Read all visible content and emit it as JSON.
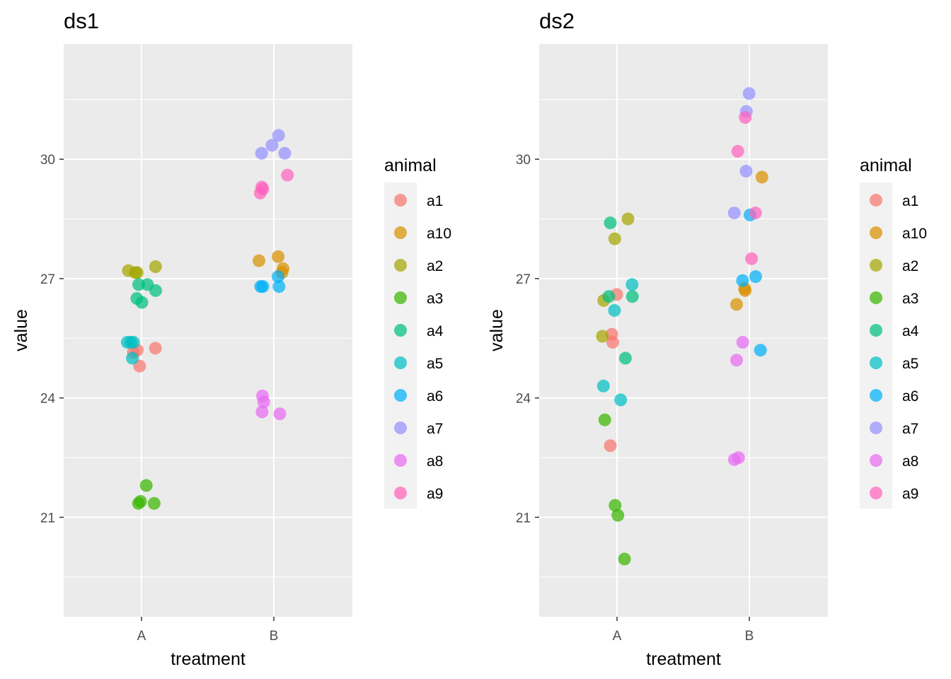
{
  "chart_data": [
    {
      "type": "scatter",
      "title": "ds1",
      "xlabel": "treatment",
      "ylabel": "value",
      "categories": [
        "A",
        "B"
      ],
      "y_ticks": [
        21,
        24,
        27,
        30
      ],
      "ylim": [
        18.5,
        32.9
      ],
      "grid": true,
      "legend": {
        "title": "animal",
        "position": "right"
      },
      "series": [
        {
          "name": "a1",
          "color": "#F8766D",
          "points": [
            [
              "A",
              24.8
            ],
            [
              "A",
              25.15
            ],
            [
              "A",
              25.2
            ],
            [
              "A",
              25.25
            ]
          ]
        },
        {
          "name": "a10",
          "color": "#D89000",
          "points": [
            [
              "B",
              27.55
            ],
            [
              "B",
              27.45
            ],
            [
              "B",
              27.25
            ],
            [
              "B",
              27.15
            ]
          ]
        },
        {
          "name": "a2",
          "color": "#A3A500",
          "points": [
            [
              "A",
              27.3
            ],
            [
              "A",
              27.15
            ],
            [
              "A",
              27.15
            ],
            [
              "A",
              27.2
            ]
          ]
        },
        {
          "name": "a3",
          "color": "#39B600",
          "points": [
            [
              "A",
              21.8
            ],
            [
              "A",
              21.35
            ],
            [
              "A",
              21.35
            ],
            [
              "A",
              21.4
            ]
          ]
        },
        {
          "name": "a4",
          "color": "#00BF7D",
          "points": [
            [
              "A",
              26.85
            ],
            [
              "A",
              26.85
            ],
            [
              "A",
              26.7
            ],
            [
              "A",
              26.5
            ],
            [
              "A",
              26.4
            ]
          ]
        },
        {
          "name": "a5",
          "color": "#00BFC4",
          "points": [
            [
              "A",
              25.4
            ],
            [
              "A",
              25.4
            ],
            [
              "A",
              25.4
            ],
            [
              "A",
              25.0
            ]
          ]
        },
        {
          "name": "a6",
          "color": "#00B0F6",
          "points": [
            [
              "B",
              27.05
            ],
            [
              "B",
              26.8
            ],
            [
              "B",
              26.8
            ],
            [
              "B",
              26.8
            ]
          ]
        },
        {
          "name": "a7",
          "color": "#9590FF",
          "points": [
            [
              "B",
              30.6
            ],
            [
              "B",
              30.35
            ],
            [
              "B",
              30.15
            ],
            [
              "B",
              30.15
            ]
          ]
        },
        {
          "name": "a8",
          "color": "#E76BF3",
          "points": [
            [
              "B",
              24.05
            ],
            [
              "B",
              23.9
            ],
            [
              "B",
              23.65
            ],
            [
              "B",
              23.6
            ]
          ]
        },
        {
          "name": "a9",
          "color": "#FF62BC",
          "points": [
            [
              "B",
              29.6
            ],
            [
              "B",
              29.3
            ],
            [
              "B",
              29.25
            ],
            [
              "B",
              29.15
            ]
          ]
        }
      ]
    },
    {
      "type": "scatter",
      "title": "ds2",
      "xlabel": "treatment",
      "ylabel": "value",
      "categories": [
        "A",
        "B"
      ],
      "y_ticks": [
        21,
        24,
        27,
        30
      ],
      "ylim": [
        18.5,
        32.9
      ],
      "grid": true,
      "legend": {
        "title": "animal",
        "position": "right"
      },
      "series": [
        {
          "name": "a1",
          "color": "#F8766D",
          "points": [
            [
              "A",
              26.6
            ],
            [
              "A",
              25.6
            ],
            [
              "A",
              25.4
            ],
            [
              "A",
              22.8
            ]
          ]
        },
        {
          "name": "a10",
          "color": "#D89000",
          "points": [
            [
              "B",
              29.55
            ],
            [
              "B",
              26.75
            ],
            [
              "B",
              26.7
            ],
            [
              "B",
              26.35
            ]
          ]
        },
        {
          "name": "a2",
          "color": "#A3A500",
          "points": [
            [
              "A",
              28.5
            ],
            [
              "A",
              28.0
            ],
            [
              "A",
              26.45
            ],
            [
              "A",
              25.55
            ]
          ]
        },
        {
          "name": "a3",
          "color": "#39B600",
          "points": [
            [
              "A",
              23.45
            ],
            [
              "A",
              21.3
            ],
            [
              "A",
              21.05
            ],
            [
              "A",
              19.95
            ]
          ]
        },
        {
          "name": "a4",
          "color": "#00BF7D",
          "points": [
            [
              "A",
              28.4
            ],
            [
              "A",
              26.55
            ],
            [
              "A",
              26.55
            ],
            [
              "A",
              25.0
            ]
          ]
        },
        {
          "name": "a5",
          "color": "#00BFC4",
          "points": [
            [
              "A",
              26.85
            ],
            [
              "A",
              26.2
            ],
            [
              "A",
              24.3
            ],
            [
              "A",
              23.95
            ]
          ]
        },
        {
          "name": "a6",
          "color": "#00B0F6",
          "points": [
            [
              "B",
              28.6
            ],
            [
              "B",
              27.05
            ],
            [
              "B",
              26.95
            ],
            [
              "B",
              25.2
            ]
          ]
        },
        {
          "name": "a7",
          "color": "#9590FF",
          "points": [
            [
              "B",
              31.65
            ],
            [
              "B",
              31.2
            ],
            [
              "B",
              29.7
            ],
            [
              "B",
              28.65
            ]
          ]
        },
        {
          "name": "a8",
          "color": "#E76BF3",
          "points": [
            [
              "B",
              25.4
            ],
            [
              "B",
              24.95
            ],
            [
              "B",
              22.5
            ],
            [
              "B",
              22.45
            ]
          ]
        },
        {
          "name": "a9",
          "color": "#FF62BC",
          "points": [
            [
              "B",
              31.05
            ],
            [
              "B",
              30.2
            ],
            [
              "B",
              28.65
            ],
            [
              "B",
              27.5
            ]
          ]
        }
      ]
    }
  ]
}
